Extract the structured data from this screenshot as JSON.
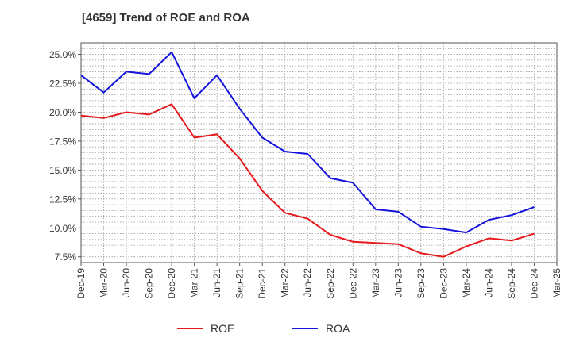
{
  "chart_data": {
    "type": "line",
    "title": "[4659]  Trend of ROE and ROA",
    "xlabel": "",
    "ylabel": "",
    "x": [
      "Dec-19",
      "Mar-20",
      "Jun-20",
      "Sep-20",
      "Dec-20",
      "Mar-21",
      "Jun-21",
      "Sep-21",
      "Dec-21",
      "Mar-22",
      "Jun-22",
      "Sep-22",
      "Dec-22",
      "Mar-23",
      "Jun-23",
      "Sep-23",
      "Dec-23",
      "Mar-24",
      "Jun-24",
      "Sep-24",
      "Dec-24",
      "Mar-25"
    ],
    "y_ticks": [
      "7.5%",
      "10.0%",
      "12.5%",
      "15.0%",
      "17.5%",
      "20.0%",
      "22.5%",
      "25.0%"
    ],
    "y_tick_values": [
      7.5,
      10.0,
      12.5,
      15.0,
      17.5,
      20.0,
      22.5,
      25.0
    ],
    "ylim": [
      7.0,
      26.0
    ],
    "grid": true,
    "legend_position": "bottom-center",
    "series": [
      {
        "name": "ROE",
        "color": "#e8191c",
        "values": [
          19.7,
          19.5,
          20.0,
          19.8,
          20.7,
          17.8,
          18.1,
          16.0,
          13.2,
          11.3,
          10.8,
          9.4,
          8.8,
          8.7,
          8.6,
          7.8,
          7.5,
          8.4,
          9.1,
          8.9,
          9.5,
          null
        ]
      },
      {
        "name": "ROA",
        "color": "#1414dc",
        "values": [
          23.2,
          21.7,
          23.5,
          23.3,
          25.2,
          21.2,
          23.2,
          20.3,
          17.8,
          16.6,
          16.4,
          14.3,
          13.9,
          11.6,
          11.4,
          10.1,
          9.9,
          9.6,
          10.7,
          11.1,
          11.8,
          null
        ]
      }
    ]
  }
}
